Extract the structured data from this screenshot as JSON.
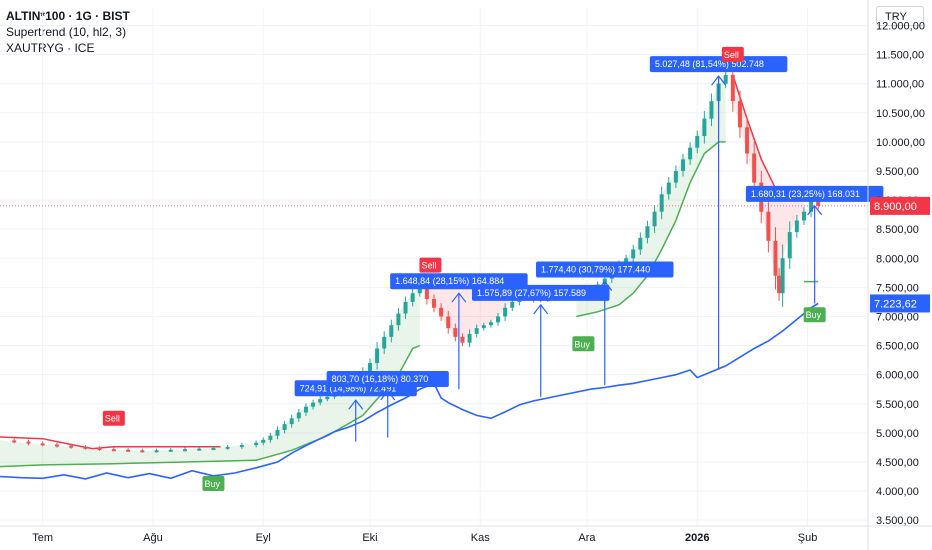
{
  "legend": {
    "symbol_line": "ALTIN*100 · 1G · BIST",
    "indicator_line": "Supertrend (10, hl2, 3)",
    "compare_line": "XAUTRYG · ICE"
  },
  "currency_button": "TRY",
  "colors": {
    "up": "#26a69a",
    "down": "#ef5350",
    "supertrend_up": "#4caf50",
    "supertrend_down": "#f23645",
    "compare": "#2962ff",
    "measure": "#2962ff",
    "price_tag": "#f23645",
    "compare_tag": "#2962ff"
  },
  "chart_data": {
    "type": "candlestick",
    "yaxis_ticks": [
      "12.000,00",
      "11.500,00",
      "11.000,00",
      "10.500,00",
      "10.000,00",
      "9.500,00",
      "9.000,00",
      "8.500,00",
      "8.000,00",
      "7.500,00",
      "7.000,00",
      "6.500,00",
      "6.000,00",
      "5.500,00",
      "5.000,00",
      "4.500,00",
      "4.000,00",
      "3.500,00"
    ],
    "yaxis_values": [
      12000,
      11500,
      11000,
      10500,
      10000,
      9500,
      9000,
      8500,
      8000,
      7500,
      7000,
      6500,
      6000,
      5500,
      5000,
      4500,
      4000,
      3500
    ],
    "ylim": [
      3400,
      12300
    ],
    "xaxis_labels": [
      {
        "label": "Tem",
        "day": 0
      },
      {
        "label": "Ağu",
        "day": 31
      },
      {
        "label": "Eyl",
        "day": 62
      },
      {
        "label": "Eki",
        "day": 92
      },
      {
        "label": "Kas",
        "day": 123
      },
      {
        "label": "Ara",
        "day": 153
      },
      {
        "label": "2026",
        "day": 184
      },
      {
        "label": "Şub",
        "day": 215
      }
    ],
    "xlim": [
      -12,
      232
    ],
    "last_price": 8900.0,
    "last_price_label": "8.900,00",
    "compare_last": 7223.62,
    "compare_last_label": "7.223,62",
    "price_series": [
      [
        -12,
        4870
      ],
      [
        -8,
        4850
      ],
      [
        -4,
        4820
      ],
      [
        0,
        4800
      ],
      [
        4,
        4780
      ],
      [
        8,
        4760
      ],
      [
        12,
        4740
      ],
      [
        16,
        4720
      ],
      [
        20,
        4710
      ],
      [
        24,
        4700
      ],
      [
        28,
        4690
      ],
      [
        32,
        4700
      ],
      [
        36,
        4710
      ],
      [
        40,
        4720
      ],
      [
        44,
        4730
      ],
      [
        48,
        4740
      ],
      [
        52,
        4760
      ],
      [
        56,
        4790
      ],
      [
        60,
        4830
      ],
      [
        62,
        4880
      ],
      [
        64,
        4950
      ],
      [
        66,
        5050
      ],
      [
        68,
        5150
      ],
      [
        70,
        5250
      ],
      [
        72,
        5350
      ],
      [
        74,
        5450
      ],
      [
        76,
        5520
      ],
      [
        78,
        5580
      ],
      [
        80,
        5620
      ],
      [
        82,
        5660
      ],
      [
        84,
        5700
      ],
      [
        86,
        5780
      ],
      [
        88,
        5900
      ],
      [
        90,
        6050
      ],
      [
        92,
        6200
      ],
      [
        94,
        6450
      ],
      [
        96,
        6650
      ],
      [
        98,
        6850
      ],
      [
        100,
        7050
      ],
      [
        102,
        7250
      ],
      [
        104,
        7400
      ],
      [
        106,
        7500
      ],
      [
        108,
        7300
      ],
      [
        110,
        7150
      ],
      [
        112,
        7000
      ],
      [
        114,
        6800
      ],
      [
        116,
        6650
      ],
      [
        118,
        6550
      ],
      [
        120,
        6700
      ],
      [
        122,
        6800
      ],
      [
        124,
        6850
      ],
      [
        126,
        6900
      ],
      [
        128,
        7000
      ],
      [
        130,
        7150
      ],
      [
        132,
        7250
      ],
      [
        134,
        7350
      ],
      [
        136,
        7400
      ],
      [
        138,
        7300
      ],
      [
        140,
        7280
      ],
      [
        142,
        7300
      ],
      [
        144,
        7330
      ],
      [
        146,
        7360
      ],
      [
        148,
        7380
      ],
      [
        150,
        7420
      ],
      [
        152,
        7450
      ],
      [
        154,
        7480
      ],
      [
        156,
        7550
      ],
      [
        158,
        7650
      ],
      [
        160,
        7800
      ],
      [
        162,
        7900
      ],
      [
        164,
        8000
      ],
      [
        166,
        8150
      ],
      [
        168,
        8350
      ],
      [
        170,
        8550
      ],
      [
        172,
        8800
      ],
      [
        174,
        9100
      ],
      [
        176,
        9300
      ],
      [
        178,
        9500
      ],
      [
        180,
        9700
      ],
      [
        182,
        9900
      ],
      [
        184,
        10100
      ],
      [
        186,
        10400
      ],
      [
        188,
        10700
      ],
      [
        190,
        11000
      ],
      [
        192,
        11150
      ],
      [
        194,
        10700
      ],
      [
        196,
        10250
      ],
      [
        198,
        9800
      ],
      [
        200,
        9300
      ],
      [
        202,
        8800
      ],
      [
        204,
        8300
      ],
      [
        206,
        7700
      ],
      [
        207,
        7400
      ],
      [
        208,
        8000
      ],
      [
        210,
        8450
      ],
      [
        212,
        8650
      ],
      [
        214,
        8800
      ],
      [
        216,
        9000
      ],
      [
        218,
        8900
      ]
    ],
    "supertrend_up_1": [
      [
        -12,
        4420
      ],
      [
        0,
        4450
      ],
      [
        20,
        4470
      ],
      [
        40,
        4500
      ],
      [
        60,
        4530
      ],
      [
        70,
        4700
      ],
      [
        80,
        4950
      ],
      [
        90,
        5300
      ],
      [
        100,
        6000
      ],
      [
        104,
        6450
      ],
      [
        106,
        6500
      ]
    ],
    "supertrend_down_1": [
      [
        -12,
        4930
      ],
      [
        0,
        4900
      ],
      [
        8,
        4800
      ],
      [
        14,
        4730
      ],
      [
        20,
        4760
      ],
      [
        30,
        4760
      ],
      [
        40,
        4760
      ],
      [
        50,
        4760
      ]
    ],
    "supertrend_down_2": [
      [
        108,
        7480
      ],
      [
        116,
        7500
      ],
      [
        124,
        7500
      ],
      [
        134,
        7480
      ],
      [
        142,
        7440
      ],
      [
        150,
        7420
      ]
    ],
    "supertrend_up_2": [
      [
        150,
        7000
      ],
      [
        156,
        7080
      ],
      [
        162,
        7200
      ],
      [
        166,
        7400
      ],
      [
        170,
        7700
      ],
      [
        174,
        8150
      ],
      [
        178,
        8650
      ],
      [
        182,
        9300
      ],
      [
        186,
        9800
      ],
      [
        190,
        10000
      ],
      [
        192,
        10000
      ]
    ],
    "supertrend_down_3": [
      [
        194,
        11150
      ],
      [
        198,
        10400
      ],
      [
        202,
        9700
      ],
      [
        206,
        9200
      ],
      [
        210,
        9050
      ],
      [
        214,
        9050
      ]
    ],
    "supertrend_up_3": [
      [
        214,
        7600
      ],
      [
        218,
        7600
      ]
    ],
    "compare_series": [
      [
        -12,
        4250
      ],
      [
        -6,
        4230
      ],
      [
        0,
        4220
      ],
      [
        6,
        4280
      ],
      [
        12,
        4210
      ],
      [
        18,
        4310
      ],
      [
        24,
        4230
      ],
      [
        30,
        4300
      ],
      [
        36,
        4220
      ],
      [
        42,
        4350
      ],
      [
        48,
        4260
      ],
      [
        54,
        4310
      ],
      [
        60,
        4400
      ],
      [
        66,
        4500
      ],
      [
        70,
        4650
      ],
      [
        74,
        4780
      ],
      [
        78,
        4900
      ],
      [
        82,
        5020
      ],
      [
        86,
        5100
      ],
      [
        90,
        5200
      ],
      [
        94,
        5350
      ],
      [
        98,
        5480
      ],
      [
        102,
        5600
      ],
      [
        106,
        5750
      ],
      [
        110,
        5850
      ],
      [
        112,
        5600
      ],
      [
        114,
        5520
      ],
      [
        118,
        5400
      ],
      [
        122,
        5300
      ],
      [
        126,
        5250
      ],
      [
        130,
        5360
      ],
      [
        134,
        5480
      ],
      [
        138,
        5550
      ],
      [
        142,
        5600
      ],
      [
        146,
        5650
      ],
      [
        150,
        5700
      ],
      [
        154,
        5750
      ],
      [
        158,
        5780
      ],
      [
        162,
        5820
      ],
      [
        166,
        5850
      ],
      [
        170,
        5900
      ],
      [
        174,
        5950
      ],
      [
        178,
        6000
      ],
      [
        182,
        6080
      ],
      [
        184,
        5950
      ],
      [
        188,
        6050
      ],
      [
        192,
        6150
      ],
      [
        196,
        6300
      ],
      [
        200,
        6450
      ],
      [
        204,
        6580
      ],
      [
        208,
        6750
      ],
      [
        212,
        6950
      ],
      [
        216,
        7150
      ],
      [
        218,
        7223
      ]
    ],
    "signals": [
      {
        "type": "Sell",
        "day": 20,
        "price": 4900
      },
      {
        "type": "Buy",
        "day": 48,
        "price": 4500
      },
      {
        "type": "Sell",
        "day": 109,
        "price": 7530
      },
      {
        "type": "Buy",
        "day": 152,
        "price": 6900
      },
      {
        "type": "Sell",
        "day": 194,
        "price": 11150
      },
      {
        "type": "Buy",
        "day": 217,
        "price": 7400
      }
    ],
    "measures": [
      {
        "label": "724,91 (14,98%) 72.491",
        "day_from": 80,
        "day_to": 88,
        "base": 4850,
        "top": 5560
      },
      {
        "label": "803,70 (16,18%) 80.370",
        "day_from": 88,
        "day_to": 97,
        "base": 4920,
        "top": 5720
      },
      {
        "label": "1.648,84 (28,15%) 164.884",
        "day_from": 110,
        "day_to": 117,
        "base": 5750,
        "top": 7400
      },
      {
        "label": "1.575,89 (27,67%) 157.589",
        "day_from": 135,
        "day_to": 140,
        "base": 5620,
        "top": 7200
      },
      {
        "label": "1.774,40 (30,79%) 177.440",
        "day_from": 153,
        "day_to": 158,
        "base": 5820,
        "top": 7600
      },
      {
        "label": "5.027,48 (81,54%) 502.748",
        "day_from": 184,
        "day_to": 190,
        "base": 6100,
        "top": 11130
      },
      {
        "label": "1.680,31 (23,25%) 168.031",
        "day_from": 211,
        "day_to": 217,
        "base": 7223,
        "top": 8900
      }
    ]
  }
}
